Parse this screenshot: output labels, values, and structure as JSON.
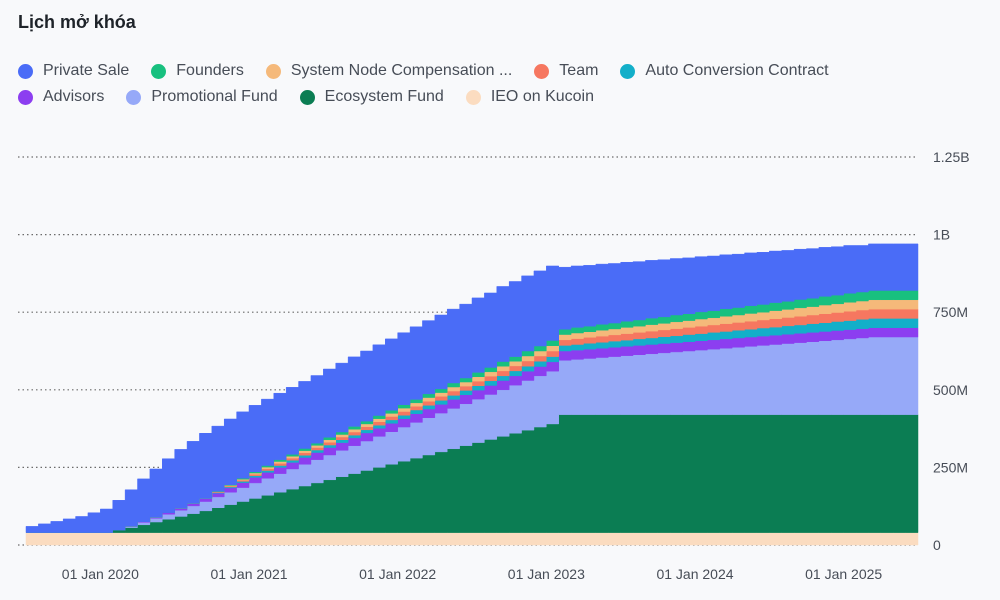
{
  "chart_data": {
    "type": "area",
    "stacked": true,
    "title": "Lịch mở khóa",
    "x": [
      "2019-07",
      "2019-08",
      "2019-09",
      "2019-10",
      "2019-11",
      "2019-12",
      "2020-01",
      "2020-02",
      "2020-03",
      "2020-04",
      "2020-05",
      "2020-06",
      "2020-07",
      "2020-08",
      "2020-09",
      "2020-10",
      "2020-11",
      "2020-12",
      "2021-01",
      "2021-02",
      "2021-03",
      "2021-04",
      "2021-05",
      "2021-06",
      "2021-07",
      "2021-08",
      "2021-09",
      "2021-10",
      "2021-11",
      "2021-12",
      "2022-01",
      "2022-02",
      "2022-03",
      "2022-04",
      "2022-05",
      "2022-06",
      "2022-07",
      "2022-08",
      "2022-09",
      "2022-10",
      "2022-11",
      "2022-12",
      "2023-01",
      "2023-02",
      "2023-03",
      "2023-04",
      "2023-05",
      "2023-06",
      "2023-07",
      "2023-08",
      "2023-09",
      "2023-10",
      "2023-11",
      "2023-12",
      "2024-01",
      "2024-02",
      "2024-03",
      "2024-04",
      "2024-05",
      "2024-06",
      "2024-07",
      "2024-08",
      "2024-09",
      "2024-10",
      "2024-11",
      "2024-12",
      "2025-01",
      "2025-02",
      "2025-03",
      "2025-04",
      "2025-05",
      "2025-06"
    ],
    "x_tick_labels": [
      "01 Jan 2020",
      "01 Jan 2021",
      "01 Jan 2022",
      "01 Jan 2023",
      "01 Jan 2024",
      "01 Jan 2025"
    ],
    "y_ticks": [
      "0",
      "250M",
      "500M",
      "750M",
      "1B",
      "1.25B"
    ],
    "y_axis_position": "right",
    "grid": "horizontal dotted",
    "legend_position": "top-left",
    "ylim": [
      0,
      1250000000
    ],
    "series": [
      {
        "name": "IEO on Kucoin",
        "color": "#fbdcc0",
        "values": [
          40000000,
          40000000,
          40000000,
          40000000,
          40000000,
          40000000,
          40000000,
          40000000,
          40000000,
          40000000,
          40000000,
          40000000,
          40000000,
          40000000,
          40000000,
          40000000,
          40000000,
          40000000,
          40000000,
          40000000,
          40000000,
          40000000,
          40000000,
          40000000,
          40000000,
          40000000,
          40000000,
          40000000,
          40000000,
          40000000,
          40000000,
          40000000,
          40000000,
          40000000,
          40000000,
          40000000,
          40000000,
          40000000,
          40000000,
          40000000,
          40000000,
          40000000,
          40000000,
          40000000,
          40000000,
          40000000,
          40000000,
          40000000,
          40000000,
          40000000,
          40000000,
          40000000,
          40000000,
          40000000,
          40000000,
          40000000,
          40000000,
          40000000,
          40000000,
          40000000,
          40000000,
          40000000,
          40000000,
          40000000,
          40000000,
          40000000,
          40000000,
          40000000,
          40000000,
          40000000,
          40000000,
          40000000
        ]
      },
      {
        "name": "Ecosystem Fund",
        "color": "#0b7d53",
        "values": [
          0,
          0,
          0,
          0,
          0,
          0,
          0,
          8000000,
          16000000,
          25000000,
          34000000,
          43000000,
          52000000,
          61000000,
          70000000,
          80000000,
          90000000,
          100000000,
          110000000,
          120000000,
          130000000,
          140000000,
          150000000,
          160000000,
          170000000,
          180000000,
          190000000,
          200000000,
          210000000,
          220000000,
          230000000,
          240000000,
          250000000,
          260000000,
          270000000,
          280000000,
          290000000,
          300000000,
          310000000,
          320000000,
          330000000,
          340000000,
          350000000,
          380000000,
          380000000,
          380000000,
          380000000,
          380000000,
          380000000,
          380000000,
          380000000,
          380000000,
          380000000,
          380000000,
          380000000,
          380000000,
          380000000,
          380000000,
          380000000,
          380000000,
          380000000,
          380000000,
          380000000,
          380000000,
          380000000,
          380000000,
          380000000,
          380000000,
          380000000,
          380000000,
          380000000,
          380000000
        ]
      },
      {
        "name": "Promotional Fund",
        "color": "#96a9f8",
        "values": [
          0,
          0,
          0,
          0,
          0,
          0,
          0,
          0,
          4000000,
          8000000,
          12000000,
          16000000,
          20000000,
          25000000,
          30000000,
          35000000,
          40000000,
          45000000,
          50000000,
          55000000,
          60000000,
          65000000,
          70000000,
          75000000,
          80000000,
          85000000,
          90000000,
          95000000,
          100000000,
          105000000,
          110000000,
          115000000,
          120000000,
          125000000,
          130000000,
          135000000,
          140000000,
          145000000,
          150000000,
          155000000,
          160000000,
          165000000,
          170000000,
          175000000,
          178000000,
          181000000,
          184000000,
          187000000,
          190000000,
          193000000,
          196000000,
          199000000,
          202000000,
          205000000,
          208000000,
          211000000,
          214000000,
          217000000,
          220000000,
          223000000,
          226000000,
          229000000,
          232000000,
          235000000,
          238000000,
          241000000,
          244000000,
          247000000,
          250000000,
          250000000,
          250000000,
          250000000
        ]
      },
      {
        "name": "Advisors",
        "color": "#8c3ef0",
        "values": [
          0,
          0,
          0,
          0,
          0,
          0,
          0,
          0,
          0,
          2000000,
          3000000,
          5000000,
          6000000,
          8000000,
          10000000,
          12000000,
          14000000,
          16000000,
          18000000,
          19000000,
          20000000,
          21000000,
          22000000,
          23000000,
          24000000,
          25000000,
          25000000,
          26000000,
          26000000,
          27000000,
          27000000,
          28000000,
          28000000,
          28000000,
          29000000,
          29000000,
          29000000,
          29000000,
          30000000,
          30000000,
          30000000,
          30000000,
          30000000,
          30000000,
          30000000,
          30000000,
          30000000,
          30000000,
          30000000,
          30000000,
          30000000,
          30000000,
          30000000,
          30000000,
          30000000,
          30000000,
          30000000,
          30000000,
          30000000,
          30000000,
          30000000,
          30000000,
          30000000,
          30000000,
          30000000,
          30000000,
          30000000,
          30000000,
          30000000,
          30000000,
          30000000,
          30000000
        ]
      },
      {
        "name": "Auto Conversion Contract",
        "color": "#13afc9",
        "values": [
          0,
          0,
          0,
          0,
          0,
          0,
          0,
          0,
          0,
          0,
          0,
          0,
          0,
          0,
          0,
          2000000,
          3000000,
          4000000,
          5000000,
          6000000,
          6000000,
          7000000,
          7000000,
          8000000,
          8000000,
          9000000,
          9000000,
          10000000,
          10000000,
          11000000,
          11000000,
          12000000,
          12000000,
          13000000,
          13000000,
          14000000,
          14000000,
          15000000,
          15000000,
          16000000,
          16000000,
          17000000,
          17000000,
          18000000,
          18000000,
          19000000,
          19000000,
          20000000,
          20000000,
          21000000,
          21000000,
          22000000,
          22000000,
          23000000,
          23000000,
          24000000,
          24000000,
          25000000,
          25000000,
          26000000,
          26000000,
          27000000,
          27000000,
          28000000,
          28000000,
          29000000,
          29000000,
          30000000,
          30000000,
          30000000,
          30000000,
          30000000
        ]
      },
      {
        "name": "Team",
        "color": "#f67760",
        "values": [
          0,
          0,
          0,
          0,
          0,
          0,
          0,
          0,
          0,
          0,
          0,
          0,
          0,
          0,
          0,
          2000000,
          3000000,
          4000000,
          5000000,
          6000000,
          7000000,
          7000000,
          8000000,
          8000000,
          9000000,
          9000000,
          10000000,
          10000000,
          11000000,
          11000000,
          12000000,
          12000000,
          13000000,
          13000000,
          14000000,
          14000000,
          15000000,
          15000000,
          16000000,
          16000000,
          17000000,
          17000000,
          18000000,
          18000000,
          19000000,
          19000000,
          20000000,
          20000000,
          21000000,
          21000000,
          22000000,
          22000000,
          23000000,
          23000000,
          24000000,
          24000000,
          25000000,
          25000000,
          26000000,
          26000000,
          27000000,
          27000000,
          28000000,
          28000000,
          29000000,
          29000000,
          30000000,
          30000000,
          30000000,
          30000000,
          30000000,
          30000000
        ]
      },
      {
        "name": "System Node Compensation ...",
        "color": "#f5b97a",
        "values": [
          0,
          0,
          0,
          0,
          0,
          0,
          0,
          0,
          0,
          0,
          0,
          0,
          0,
          0,
          0,
          1000000,
          2000000,
          3000000,
          4000000,
          5000000,
          6000000,
          6000000,
          7000000,
          7000000,
          8000000,
          8000000,
          9000000,
          9000000,
          10000000,
          10000000,
          11000000,
          11000000,
          12000000,
          12000000,
          13000000,
          13000000,
          14000000,
          14000000,
          15000000,
          15000000,
          16000000,
          16000000,
          17000000,
          17000000,
          18000000,
          18000000,
          19000000,
          19000000,
          20000000,
          20000000,
          21000000,
          21000000,
          22000000,
          22000000,
          23000000,
          23000000,
          24000000,
          24000000,
          25000000,
          25000000,
          26000000,
          26000000,
          27000000,
          27000000,
          28000000,
          28000000,
          29000000,
          29000000,
          30000000,
          30000000,
          30000000,
          30000000
        ]
      },
      {
        "name": "Founders",
        "color": "#18c07f",
        "values": [
          0,
          0,
          0,
          0,
          0,
          0,
          0,
          0,
          0,
          0,
          0,
          0,
          0,
          0,
          0,
          1000000,
          2000000,
          3000000,
          4000000,
          5000000,
          6000000,
          6000000,
          7000000,
          7000000,
          8000000,
          8000000,
          9000000,
          9000000,
          10000000,
          10000000,
          11000000,
          11000000,
          12000000,
          12000000,
          13000000,
          13000000,
          14000000,
          14000000,
          15000000,
          15000000,
          16000000,
          16000000,
          17000000,
          17000000,
          18000000,
          18000000,
          19000000,
          19000000,
          20000000,
          20000000,
          21000000,
          21000000,
          22000000,
          22000000,
          23000000,
          23000000,
          24000000,
          24000000,
          25000000,
          25000000,
          26000000,
          26000000,
          27000000,
          27000000,
          28000000,
          28000000,
          29000000,
          29000000,
          30000000,
          30000000,
          30000000,
          30000000
        ]
      },
      {
        "name": "Private Sale",
        "color": "#4a6cf7",
        "values": [
          20000000,
          28000000,
          36000000,
          44000000,
          52000000,
          64000000,
          76000000,
          96000000,
          118000000,
          138000000,
          156000000,
          174000000,
          190000000,
          200000000,
          210000000,
          210000000,
          212000000,
          214000000,
          214000000,
          214000000,
          214000000,
          216000000,
          216000000,
          218000000,
          220000000,
          222000000,
          224000000,
          226000000,
          228000000,
          230000000,
          232000000,
          234000000,
          236000000,
          238000000,
          238000000,
          238000000,
          240000000,
          240000000,
          242000000,
          242000000,
          242000000,
          242000000,
          240000000,
          200000000,
          198000000,
          196000000,
          194000000,
          192000000,
          190000000,
          188000000,
          186000000,
          184000000,
          182000000,
          180000000,
          178000000,
          176000000,
          174000000,
          172000000,
          170000000,
          168000000,
          166000000,
          164000000,
          162000000,
          160000000,
          158000000,
          156000000,
          154000000,
          150000000,
          150000000,
          150000000,
          150000000,
          150000000
        ]
      }
    ]
  },
  "legend": {
    "row1": [
      {
        "label": "Private Sale",
        "color": "#4a6cf7"
      },
      {
        "label": "Founders",
        "color": "#18c07f"
      },
      {
        "label": "System Node Compensation ...",
        "color": "#f5b97a"
      },
      {
        "label": "Team",
        "color": "#f67760"
      },
      {
        "label": "Auto Conversion Contract",
        "color": "#13afc9"
      }
    ],
    "row2": [
      {
        "label": "Advisors",
        "color": "#8c3ef0"
      },
      {
        "label": "Promotional Fund",
        "color": "#96a9f8"
      },
      {
        "label": "Ecosystem Fund",
        "color": "#0b7d53"
      },
      {
        "label": "IEO on Kucoin",
        "color": "#fbdcc0"
      }
    ]
  }
}
